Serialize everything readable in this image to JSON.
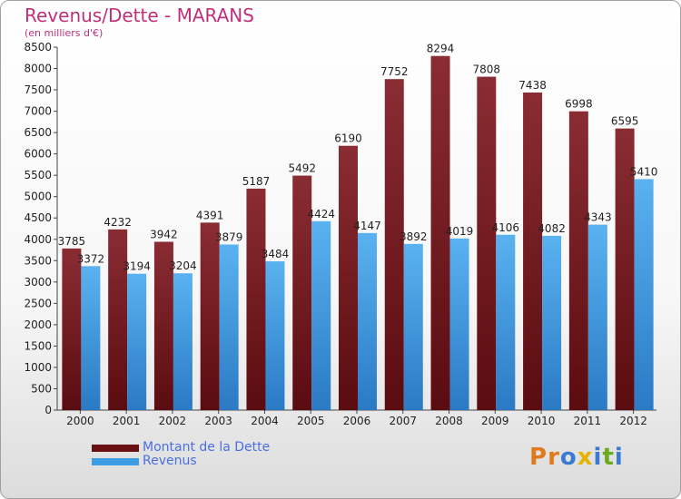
{
  "chart_data": {
    "type": "bar",
    "title": "Revenus/Dette - MARANS",
    "subtitle": "(en milliers d'€)",
    "categories": [
      "2000",
      "2001",
      "2002",
      "2003",
      "2004",
      "2005",
      "2006",
      "2007",
      "2008",
      "2009",
      "2010",
      "2011",
      "2012"
    ],
    "series": [
      {
        "name": "Montant de la Dette",
        "color": "#7a1a1f",
        "values": [
          3785,
          4232,
          3942,
          4391,
          5187,
          5492,
          6190,
          7752,
          8294,
          7808,
          7438,
          6998,
          6595
        ]
      },
      {
        "name": "Revenus",
        "color": "#3d9ee6",
        "values": [
          3372,
          3194,
          3204,
          3879,
          3484,
          4424,
          4147,
          3892,
          4019,
          4106,
          4082,
          4343,
          5410
        ]
      }
    ],
    "ylim": [
      0,
      8500
    ],
    "yticks": [
      0,
      500,
      1000,
      1500,
      2000,
      2500,
      3000,
      3500,
      4000,
      4500,
      5000,
      5500,
      6000,
      6500,
      7000,
      7500,
      8000,
      8500
    ],
    "grid": false,
    "legend_position": "bottom-left"
  },
  "logo": {
    "text": "Proxiti",
    "colors": [
      "#e07a1c",
      "#e07a1c",
      "#3a7ad0",
      "#e4b400",
      "#3a7ad0",
      "#6aaa1e",
      "#3a7ad0"
    ]
  }
}
